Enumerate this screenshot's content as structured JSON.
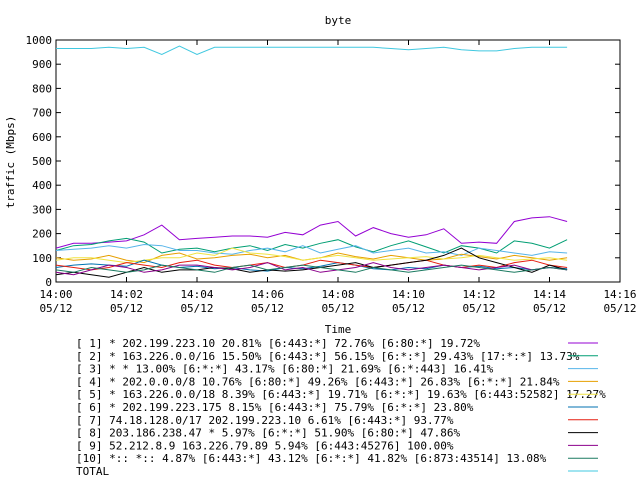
{
  "chart_data": {
    "type": "line",
    "title": "byte",
    "xlabel": "Time",
    "ylabel": "traffic (Mbps)",
    "ylim": [
      0,
      1000
    ],
    "xlim_minutes": [
      0,
      16
    ],
    "y_ticks": [
      "0",
      "100",
      "200",
      "300",
      "400",
      "500",
      "600",
      "700",
      "800",
      "900",
      "1000"
    ],
    "x_ticks": [
      {
        "time": "14:00",
        "date": "05/12"
      },
      {
        "time": "14:02",
        "date": "05/12"
      },
      {
        "time": "14:04",
        "date": "05/12"
      },
      {
        "time": "14:06",
        "date": "05/12"
      },
      {
        "time": "14:08",
        "date": "05/12"
      },
      {
        "time": "14:10",
        "date": "05/12"
      },
      {
        "time": "14:12",
        "date": "05/12"
      },
      {
        "time": "14:14",
        "date": "05/12"
      },
      {
        "time": "14:16",
        "date": "05/12"
      }
    ],
    "x_minutes": [
      0,
      0.5,
      1,
      1.5,
      2,
      2.5,
      3,
      3.5,
      4,
      4.5,
      5,
      5.5,
      6,
      6.5,
      7,
      7.5,
      8,
      8.5,
      9,
      9.5,
      10,
      10.5,
      11,
      11.5,
      12,
      12.5,
      13,
      13.5,
      14,
      14.5
    ],
    "legend_position": "below",
    "grid": false,
    "series": [
      {
        "name": "[ 1] * 202.199.223.10 20.81%  [6:443:*] 72.76% [6:80:*] 19.72%",
        "color": "#9400d3",
        "values": [
          140,
          160,
          160,
          165,
          170,
          195,
          235,
          175,
          180,
          185,
          190,
          190,
          185,
          205,
          195,
          235,
          250,
          190,
          225,
          200,
          185,
          195,
          220,
          160,
          165,
          160,
          250,
          265,
          270,
          250
        ]
      },
      {
        "name": "[ 2] * 163.226.0.0/16 15.50%  [6:443:*] 56.15% [6:*:*] 29.43% [17:*:*] 13.73%",
        "color": "#009e73",
        "values": [
          130,
          150,
          155,
          170,
          180,
          165,
          120,
          135,
          140,
          125,
          140,
          150,
          130,
          155,
          140,
          160,
          175,
          145,
          125,
          150,
          170,
          145,
          120,
          150,
          140,
          120,
          170,
          160,
          140,
          175
        ]
      },
      {
        "name": "[ 3] * * 13.00%  [6:*:*] 43.17% [6:80:*] 21.69% [6:*:443] 16.41%",
        "color": "#56b4e9",
        "values": [
          130,
          135,
          140,
          150,
          140,
          155,
          150,
          130,
          130,
          120,
          115,
          130,
          140,
          125,
          150,
          120,
          135,
          150,
          120,
          130,
          140,
          120,
          125,
          110,
          140,
          130,
          120,
          110,
          125,
          120
        ]
      },
      {
        "name": "[ 4] * 202.0.0.0/8 10.76%  [6:80:*] 49.26% [6:443:*] 26.83% [6:*:*] 21.84%",
        "color": "#e69f00",
        "values": [
          100,
          90,
          95,
          110,
          90,
          80,
          110,
          120,
          95,
          100,
          110,
          115,
          100,
          110,
          90,
          100,
          120,
          105,
          95,
          110,
          100,
          90,
          95,
          115,
          105,
          95,
          110,
          100,
          90,
          100
        ]
      },
      {
        "name": "[ 5] * 163.226.0.0/18 8.39%  [6:443:*] 19.71% [6:*:*] 19.63% [6:443:52582] 17.27%",
        "color": "#f0e442",
        "values": [
          90,
          100,
          100,
          90,
          80,
          90,
          100,
          100,
          120,
          110,
          140,
          120,
          115,
          105,
          90,
          100,
          110,
          100,
          90,
          95,
          100,
          105,
          95,
          100,
          110,
          100,
          90,
          95,
          100,
          90
        ]
      },
      {
        "name": "[ 6] * 202.199.223.175 8.15%  [6:443:*] 75.79% [6:*:*] 23.80%",
        "color": "#0072b2",
        "values": [
          60,
          70,
          75,
          70,
          65,
          90,
          70,
          60,
          65,
          55,
          60,
          50,
          45,
          60,
          55,
          65,
          80,
          70,
          55,
          50,
          60,
          55,
          70,
          60,
          65,
          55,
          60,
          50,
          60,
          55
        ]
      },
      {
        "name": "[ 7] 74.18.128.0/17 202.199.223.10 6.61%  [6:443:*] 93.77%",
        "color": "#e51e10",
        "values": [
          70,
          60,
          50,
          60,
          80,
          70,
          60,
          80,
          90,
          70,
          60,
          70,
          80,
          60,
          70,
          90,
          80,
          70,
          60,
          70,
          80,
          90,
          70,
          60,
          70,
          60,
          80,
          90,
          70,
          60
        ]
      },
      {
        "name": "[ 8] 203.186.238.47 * 5.97%  [6:*:*] 51.90% [6:80:*] 47.86%",
        "color": "#000000",
        "values": [
          30,
          40,
          30,
          20,
          40,
          60,
          40,
          50,
          50,
          60,
          55,
          40,
          50,
          45,
          50,
          60,
          70,
          80,
          60,
          70,
          80,
          90,
          110,
          140,
          100,
          80,
          60,
          40,
          70,
          50
        ]
      },
      {
        "name": "[ 9] 52.212.8.9 163.226.79.89 5.94%  [6:443:45276] 100.00%",
        "color": "#8b008b",
        "values": [
          40,
          30,
          50,
          70,
          60,
          40,
          50,
          70,
          70,
          60,
          50,
          60,
          80,
          50,
          60,
          40,
          50,
          60,
          80,
          60,
          50,
          60,
          70,
          60,
          50,
          60,
          70,
          50,
          60,
          50
        ]
      },
      {
        "name": "[10] *:: *:: 4.87%  [6:443:*] 43.12% [6:*:*] 41.82% [6:873:43514] 13.08%",
        "color": "#1a7a60",
        "values": [
          50,
          40,
          60,
          50,
          40,
          50,
          70,
          60,
          50,
          40,
          60,
          70,
          50,
          60,
          70,
          60,
          50,
          40,
          60,
          50,
          40,
          50,
          60,
          70,
          60,
          50,
          40,
          50,
          60,
          50
        ]
      },
      {
        "name": "TOTAL",
        "color": "#40c8e0",
        "values": [
          965,
          965,
          965,
          970,
          965,
          970,
          940,
          975,
          940,
          970,
          970,
          970,
          970,
          970,
          970,
          970,
          970,
          970,
          970,
          965,
          960,
          965,
          970,
          960,
          955,
          955,
          965,
          970,
          970,
          970
        ]
      }
    ]
  }
}
